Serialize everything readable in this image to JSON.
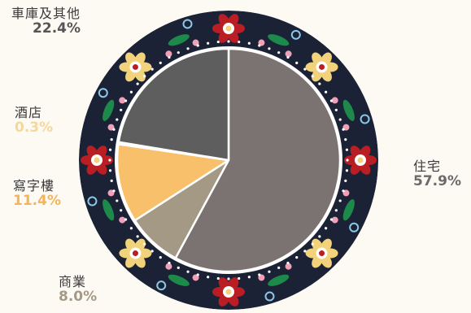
{
  "chart_data": {
    "type": "pie",
    "slices": [
      {
        "label": "住宅",
        "value": 57.9,
        "display": "57.9%",
        "color": "#7b7371"
      },
      {
        "label": "商業",
        "value": 8.0,
        "display": "8.0%",
        "color": "#a49985"
      },
      {
        "label": "寫字樓",
        "value": 11.4,
        "display": "11.4%",
        "color": "#f8c06b"
      },
      {
        "label": "酒店",
        "value": 0.3,
        "display": "0.3%",
        "color": "#f5d79a"
      },
      {
        "label": "車庫及其他",
        "value": 22.4,
        "display": "22.4%",
        "color": "#5e5e5e"
      }
    ],
    "label_colors": {
      "住宅": "#6a6a6a",
      "商業": "#a49985",
      "寫字樓": "#f3b45b",
      "酒店": "#f5d79a",
      "車庫及其他": "#555555"
    },
    "decoration_colors": {
      "ring": "#1c2235",
      "red": "#b81e24",
      "green": "#1d8a4c",
      "yellow": "#f2d27a",
      "pink": "#f0a0b8",
      "blue": "#8cc8e8",
      "white": "#ffffff"
    }
  }
}
